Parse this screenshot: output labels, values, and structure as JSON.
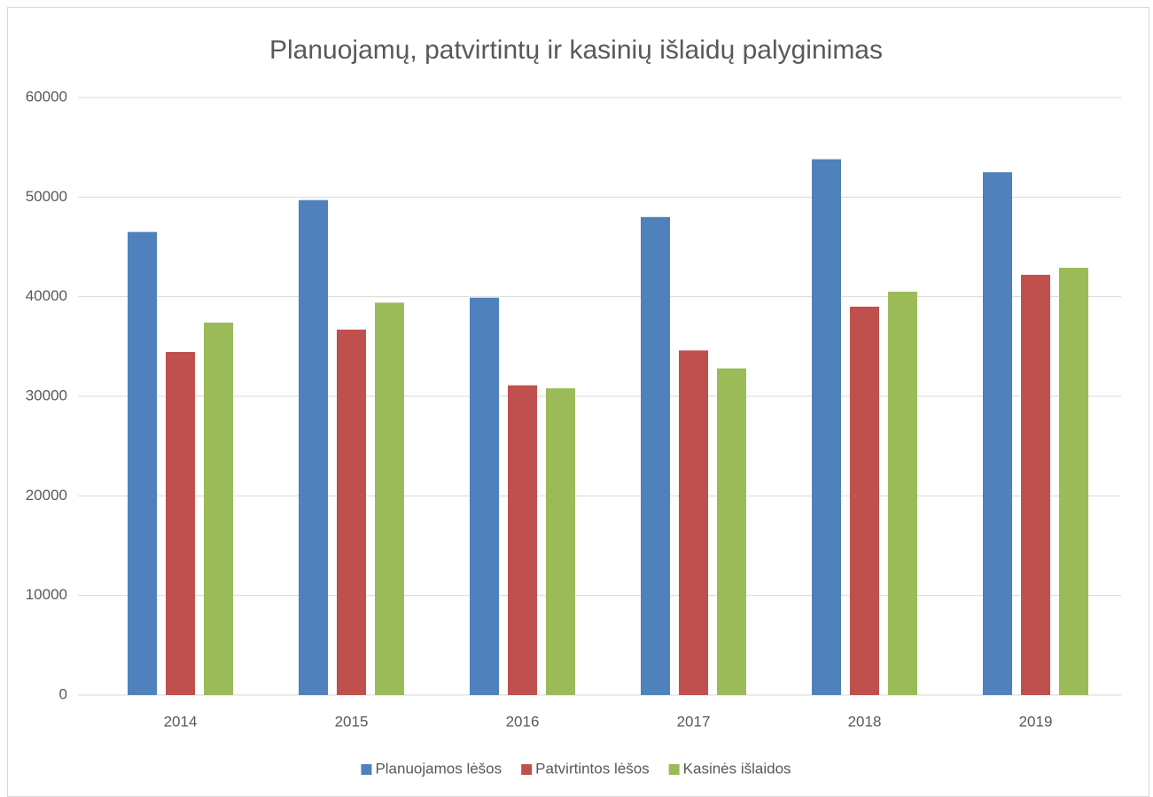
{
  "chart_data": {
    "type": "bar",
    "title": "Planuojamų, patvirtintų ir kasinių išlaidų palyginimas",
    "categories": [
      "2014",
      "2015",
      "2016",
      "2017",
      "2018",
      "2019"
    ],
    "series": [
      {
        "name": "Planuojamos lėšos",
        "color": "#4f81bd",
        "values": [
          46500,
          49700,
          39900,
          48000,
          53800,
          52500
        ]
      },
      {
        "name": "Patvirtintos lėšos",
        "color": "#c0504d",
        "values": [
          34450,
          36700,
          31100,
          34600,
          39000,
          42200
        ]
      },
      {
        "name": "Kasinės išlaidos",
        "color": "#9bbb59",
        "values": [
          37400,
          39400,
          30800,
          32800,
          40500,
          42900
        ]
      }
    ],
    "ylim": [
      0,
      60000
    ],
    "yticks": [
      0,
      10000,
      20000,
      30000,
      40000,
      50000,
      60000
    ],
    "grid": true,
    "legend": "bottom"
  }
}
